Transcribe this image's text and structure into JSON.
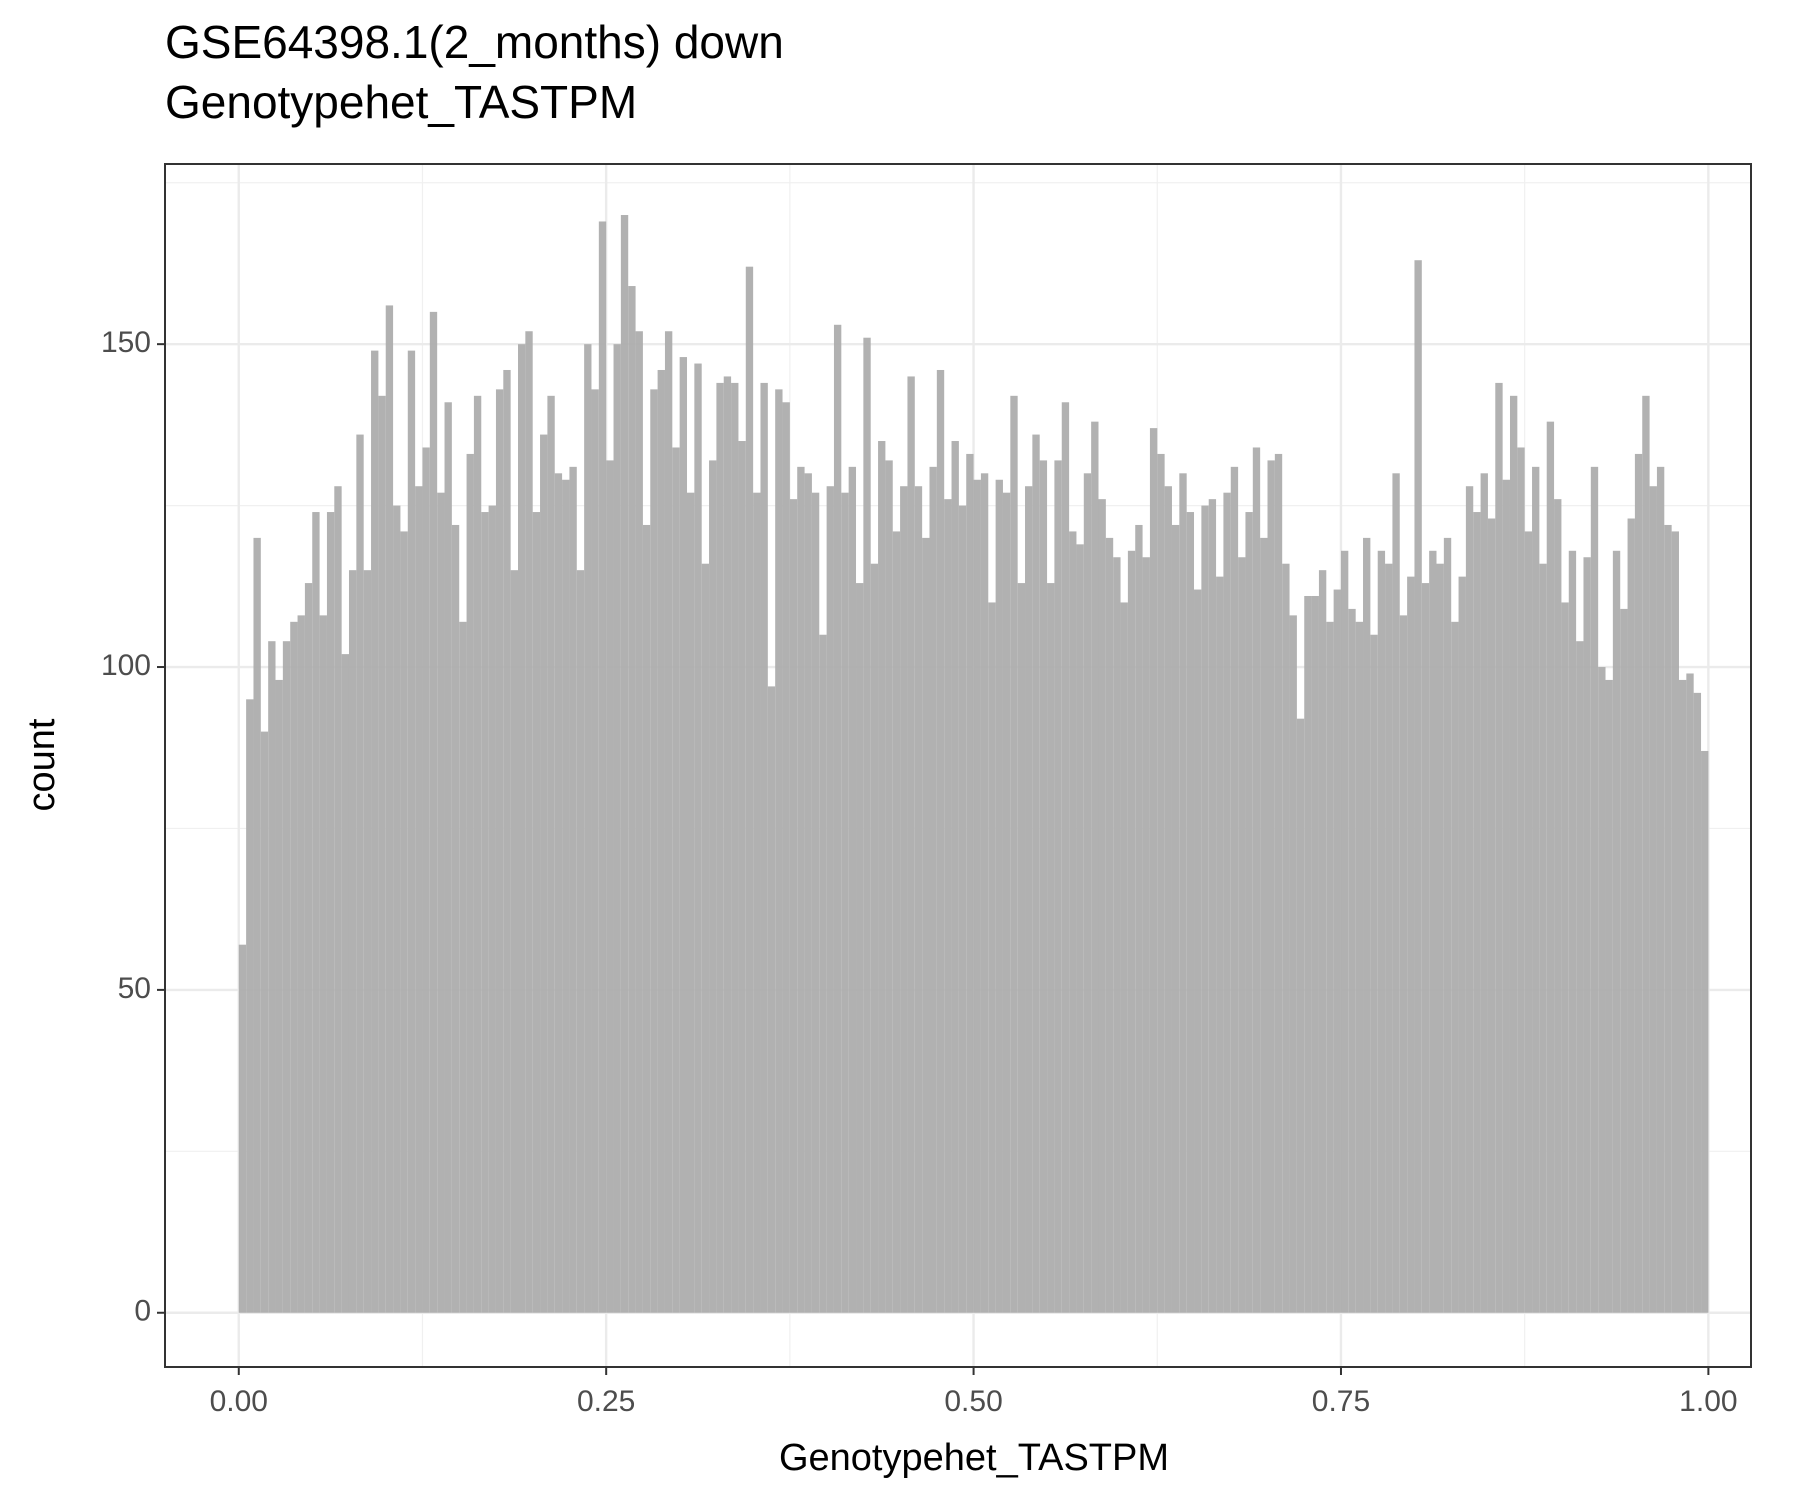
{
  "chart_data": {
    "type": "histogram",
    "title": [
      "GSE64398.1(2_months) down",
      "Genotypehet_TASTPM"
    ],
    "x_label": "Genotypehet_TASTPM",
    "y_label": "count",
    "color": "#adadad",
    "bins": [
      0,
      0.005,
      0.01,
      0.015,
      0.02,
      0.025,
      0.03,
      0.035,
      0.04,
      0.045,
      0.05,
      0.055,
      0.06,
      0.065,
      0.07,
      0.075,
      0.08,
      0.085,
      0.09,
      0.095,
      0.1,
      0.105,
      0.11,
      0.115,
      0.12,
      0.125,
      0.13,
      0.135,
      0.14,
      0.145,
      0.15,
      0.155,
      0.16,
      0.165,
      0.17,
      0.175,
      0.18,
      0.185,
      0.19,
      0.195,
      0.2,
      0.205,
      0.21,
      0.215,
      0.22,
      0.225,
      0.23,
      0.235,
      0.24,
      0.245,
      0.25,
      0.255,
      0.26,
      0.265,
      0.27,
      0.275,
      0.28,
      0.285,
      0.29,
      0.295,
      0.3,
      0.305,
      0.31,
      0.315,
      0.32,
      0.325,
      0.33,
      0.335,
      0.34,
      0.345,
      0.35,
      0.355,
      0.36,
      0.365,
      0.37,
      0.375,
      0.38,
      0.385,
      0.39,
      0.395,
      0.4,
      0.405,
      0.41,
      0.415,
      0.42,
      0.425,
      0.43,
      0.435,
      0.44,
      0.445,
      0.45,
      0.455,
      0.46,
      0.465,
      0.47,
      0.475,
      0.48,
      0.485,
      0.49,
      0.495,
      0.5,
      0.505,
      0.51,
      0.515,
      0.52,
      0.525,
      0.53,
      0.535,
      0.54,
      0.545,
      0.55,
      0.555,
      0.56,
      0.565,
      0.57,
      0.575,
      0.58,
      0.585,
      0.59,
      0.595,
      0.6,
      0.605,
      0.61,
      0.615,
      0.62,
      0.625,
      0.63,
      0.635,
      0.64,
      0.645,
      0.65,
      0.655,
      0.66,
      0.665,
      0.67,
      0.675,
      0.68,
      0.685,
      0.69,
      0.695,
      0.7,
      0.705,
      0.71,
      0.715,
      0.72,
      0.725,
      0.73,
      0.735,
      0.74,
      0.745,
      0.75,
      0.755,
      0.76,
      0.765,
      0.77,
      0.775,
      0.78,
      0.785,
      0.79,
      0.795,
      0.8,
      0.805,
      0.81,
      0.815,
      0.82,
      0.825,
      0.83,
      0.835,
      0.84,
      0.845,
      0.85,
      0.855,
      0.86,
      0.865,
      0.87,
      0.875,
      0.88,
      0.885,
      0.89,
      0.895,
      0.9,
      0.905,
      0.91,
      0.915,
      0.92,
      0.925,
      0.93,
      0.935,
      0.94,
      0.945,
      0.95,
      0.955,
      0.96,
      0.965,
      0.97,
      0.975,
      0.98,
      0.985,
      0.99,
      0.995,
      1
    ],
    "values": [
      57,
      95,
      120,
      90,
      104,
      98,
      104,
      107,
      108,
      113,
      124,
      108,
      124,
      128,
      102,
      115,
      136,
      115,
      149,
      142,
      156,
      125,
      121,
      149,
      128,
      134,
      155,
      127,
      141,
      122,
      107,
      133,
      142,
      124,
      125,
      143,
      146,
      115,
      150,
      152,
      124,
      136,
      142,
      130,
      129,
      131,
      115,
      150,
      143,
      169,
      132,
      150,
      170,
      159,
      152,
      122,
      143,
      146,
      152,
      134,
      148,
      127,
      147,
      116,
      132,
      144,
      145,
      144,
      135,
      162,
      127,
      144,
      97,
      143,
      141,
      126,
      131,
      130,
      127,
      105,
      128,
      153,
      127,
      131,
      113,
      151,
      116,
      135,
      132,
      121,
      128,
      145,
      128,
      120,
      131,
      146,
      126,
      135,
      125,
      133,
      129,
      130,
      110,
      129,
      127,
      142,
      113,
      128,
      136,
      132,
      113,
      132,
      141,
      121,
      119,
      130,
      138,
      126,
      120,
      117,
      110,
      118,
      122,
      117,
      137,
      133,
      128,
      122,
      130,
      124,
      112,
      125,
      126,
      114,
      127,
      131,
      117,
      124,
      134,
      120,
      132,
      133,
      116,
      108,
      92,
      111,
      111,
      115,
      107,
      112,
      118,
      109,
      107,
      120,
      105,
      118,
      116,
      130,
      108,
      114,
      163,
      113,
      118,
      116,
      120,
      107,
      114,
      128,
      124,
      130,
      123,
      144,
      129,
      142,
      134,
      121,
      131,
      116,
      138,
      126,
      110,
      118,
      104,
      117,
      131,
      100,
      98,
      118,
      109,
      123,
      133,
      142,
      128,
      131,
      122,
      121,
      98,
      99,
      96,
      87
    ],
    "xlim": [
      -0.0502,
      1.029
    ],
    "ylim": [
      -8.4,
      177.9
    ],
    "xticks": [
      {
        "value": 0,
        "label": "0.00"
      },
      0.25,
      {
        "value": 0.5,
        "label": "0.50"
      },
      0.75,
      {
        "value": 1,
        "label": "1.00"
      }
    ],
    "yticks": [
      0,
      50,
      100,
      150
    ],
    "grid": true
  }
}
